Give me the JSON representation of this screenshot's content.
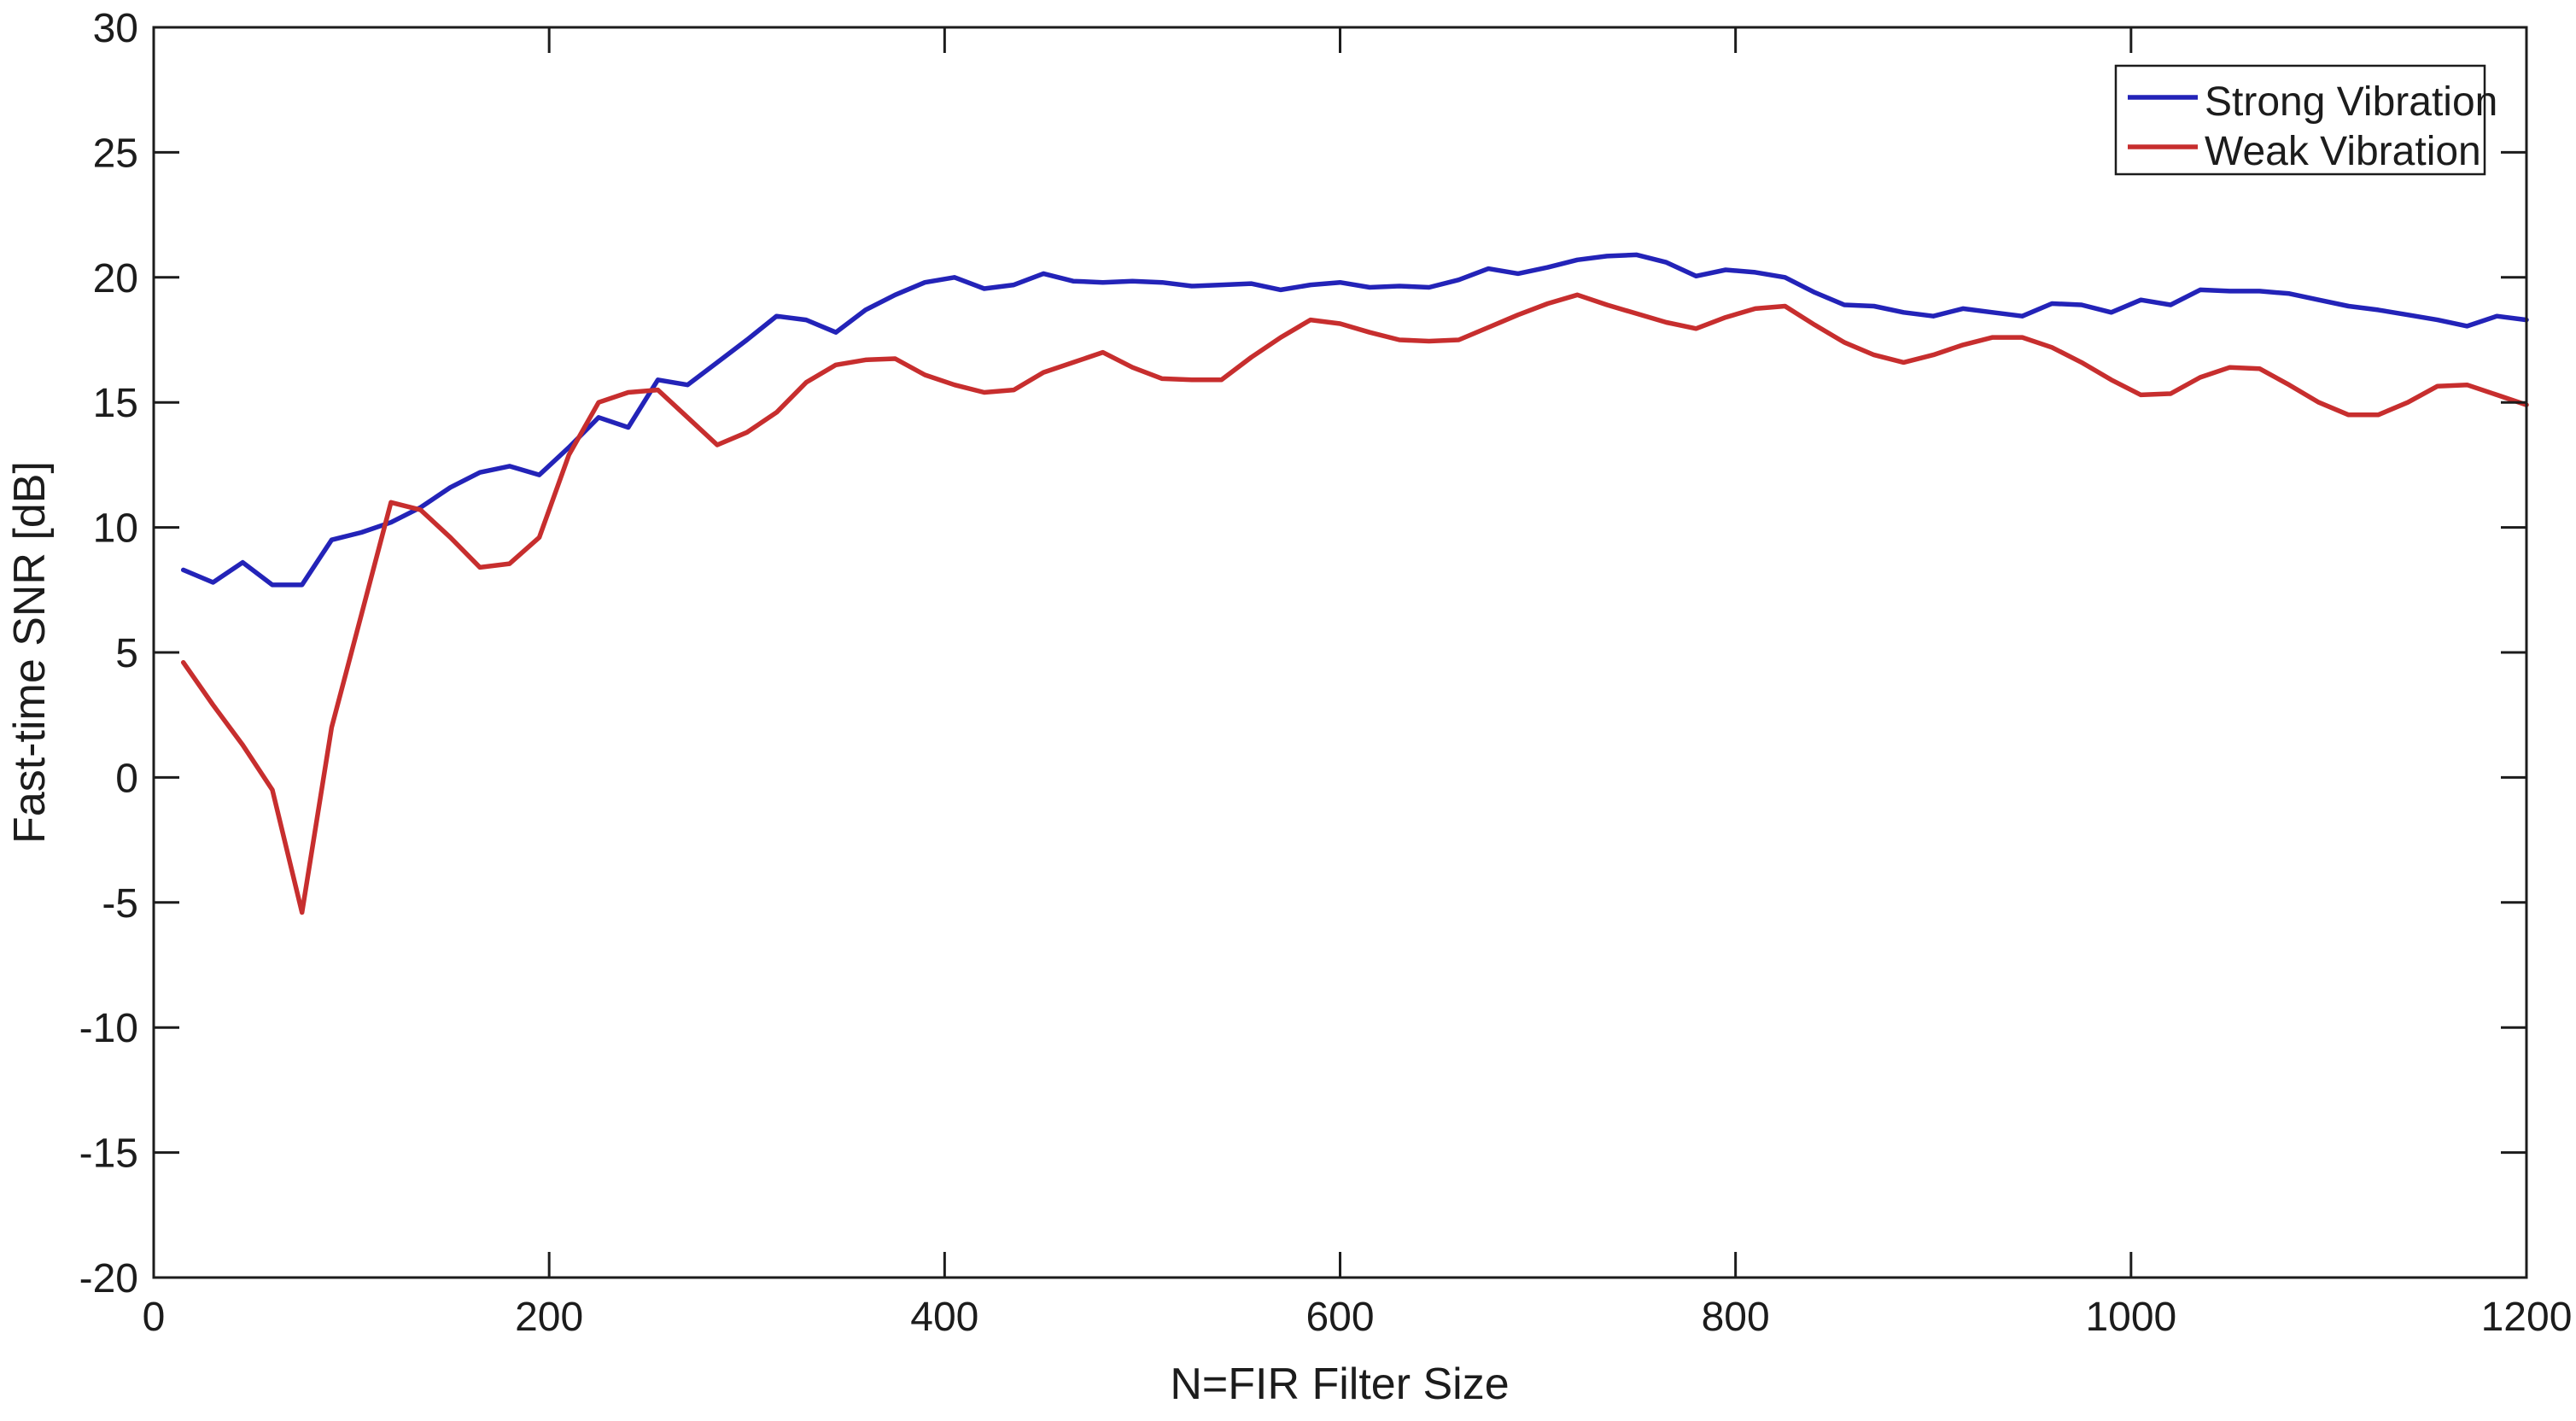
{
  "figure": {
    "background": "#ffffff",
    "axis_color": "#1c1c1c"
  },
  "chart_data": {
    "type": "line",
    "title": "",
    "xlabel": "N=FIR Filter Size",
    "ylabel": "Fast-time SNR [dB]",
    "xlim": [
      0,
      1200
    ],
    "ylim": [
      -20,
      30
    ],
    "x_ticks": [
      0,
      200,
      400,
      600,
      800,
      1000,
      1200
    ],
    "y_ticks": [
      -20,
      -15,
      -10,
      -5,
      0,
      5,
      10,
      15,
      20,
      25,
      30
    ],
    "grid": false,
    "legend_position": "top-right",
    "x": [
      15,
      30,
      45,
      60,
      75,
      90,
      105,
      120,
      135,
      150,
      165,
      180,
      195,
      210,
      225,
      240,
      255,
      270,
      285,
      300,
      315,
      330,
      345,
      360,
      375,
      390,
      405,
      420,
      435,
      450,
      465,
      480,
      495,
      510,
      525,
      540,
      555,
      570,
      585,
      600,
      615,
      630,
      645,
      660,
      675,
      690,
      705,
      720,
      735,
      750,
      765,
      780,
      795,
      810,
      825,
      840,
      855,
      870,
      885,
      900,
      915,
      930,
      945,
      960,
      975,
      990,
      1005,
      1020,
      1035,
      1050,
      1065,
      1080,
      1095,
      1110,
      1125,
      1140,
      1155,
      1170,
      1185,
      1200
    ],
    "series": [
      {
        "name": "Strong Vibration",
        "color": "#2323b8",
        "values": [
          8.3,
          7.8,
          8.6,
          7.7,
          7.7,
          9.5,
          9.8,
          10.2,
          10.8,
          11.6,
          12.2,
          12.45,
          12.1,
          13.2,
          14.4,
          14.0,
          15.9,
          15.7,
          16.6,
          17.5,
          18.45,
          18.3,
          17.8,
          18.7,
          19.3,
          19.8,
          20.0,
          19.55,
          19.7,
          20.15,
          19.85,
          19.8,
          19.85,
          19.8,
          19.65,
          19.7,
          19.75,
          19.5,
          19.7,
          19.8,
          19.6,
          19.65,
          19.6,
          19.9,
          20.35,
          20.15,
          20.4,
          20.7,
          20.85,
          20.9,
          20.6,
          20.05,
          20.3,
          20.2,
          20.0,
          19.4,
          18.9,
          18.85,
          18.6,
          18.45,
          18.75,
          18.6,
          18.45,
          18.95,
          18.9,
          18.6,
          19.1,
          18.9,
          19.5,
          19.45,
          19.45,
          19.35,
          19.1,
          18.85,
          18.7,
          18.5,
          18.3,
          18.05,
          18.45,
          18.3
        ]
      },
      {
        "name": "Weak Vibration",
        "color": "#c72e2e",
        "values": [
          4.6,
          2.9,
          1.3,
          -0.5,
          -5.4,
          2.0,
          6.5,
          11.0,
          10.7,
          9.6,
          8.4,
          8.55,
          9.6,
          12.9,
          15.0,
          15.4,
          15.5,
          14.4,
          13.3,
          13.8,
          14.6,
          15.8,
          16.5,
          16.7,
          16.75,
          16.1,
          15.7,
          15.4,
          15.5,
          16.2,
          16.6,
          17.0,
          16.4,
          15.95,
          15.9,
          15.9,
          16.8,
          17.6,
          18.3,
          18.15,
          17.8,
          17.5,
          17.45,
          17.5,
          18.0,
          18.5,
          18.95,
          19.3,
          18.9,
          18.55,
          18.2,
          17.95,
          18.4,
          18.75,
          18.85,
          18.1,
          17.4,
          16.9,
          16.6,
          16.9,
          17.3,
          17.6,
          17.6,
          17.2,
          16.6,
          15.9,
          15.3,
          15.35,
          16.0,
          16.4,
          16.35,
          15.7,
          15.0,
          14.5,
          14.5,
          15.0,
          15.65,
          15.7,
          15.3,
          14.9
        ]
      }
    ]
  }
}
